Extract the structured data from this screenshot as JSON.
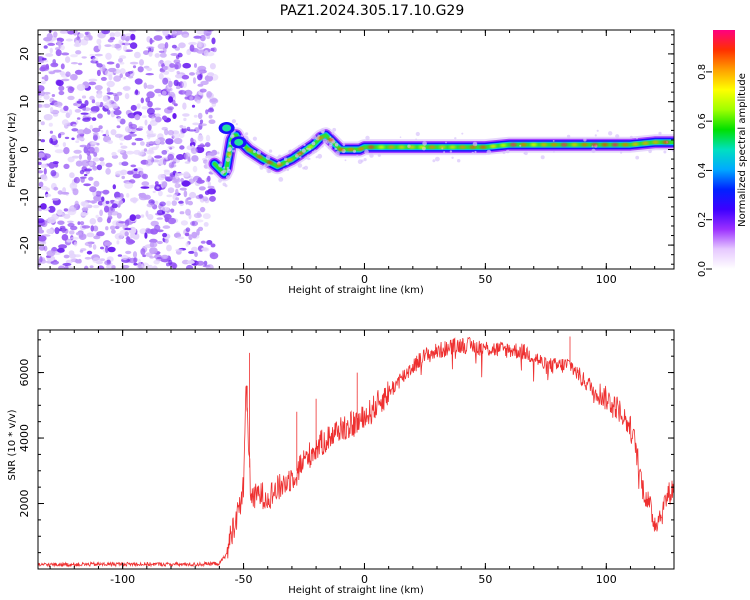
{
  "title": "PAZ1.2024.305.17.10.G29",
  "chart_data": [
    {
      "type": "heatmap",
      "xlabel": "Height of straight line (km)",
      "ylabel": "Frequency (Hz)",
      "xlim": [
        -135,
        128
      ],
      "ylim": [
        -25,
        25
      ],
      "xticks": [
        -100,
        -50,
        0,
        50,
        100
      ],
      "yticks": [
        -20,
        -10,
        0,
        10,
        20
      ],
      "noise_region_x": [
        -135,
        -62
      ],
      "ridge": {
        "x": [
          -62,
          -60,
          -58,
          -57,
          -56,
          -55,
          -54,
          -53,
          -52,
          -50,
          -48,
          -45,
          -42,
          -40,
          -38,
          -36,
          -34,
          -32,
          -30,
          -27,
          -24,
          -21,
          -18,
          -16,
          -14,
          -12,
          -10,
          -8,
          -5,
          -2,
          0,
          5,
          10,
          20,
          30,
          40,
          50,
          60,
          70,
          80,
          90,
          100,
          110,
          120,
          128
        ],
        "y": [
          -3,
          -4,
          -5,
          -4,
          -1,
          2,
          3,
          3,
          2,
          1,
          0,
          -1,
          -2,
          -2.5,
          -3,
          -3.5,
          -3,
          -2.5,
          -2,
          -1,
          0,
          1,
          2.5,
          3,
          2,
          1,
          0,
          0,
          0,
          0,
          0.5,
          0.5,
          0.5,
          0.5,
          0.5,
          0.5,
          0.5,
          1,
          1,
          1,
          1,
          1,
          1,
          1.5,
          1.5
        ]
      },
      "side_blobs": [
        {
          "x": -57,
          "y": 4.5
        },
        {
          "x": -52,
          "y": 1.5
        }
      ],
      "colorbar": {
        "label": "Normalized spectral amplitude",
        "ticks": [
          0.0,
          0.2,
          0.4,
          0.6,
          0.8
        ],
        "tick_labels": [
          "0.0",
          "0.2",
          "0.4",
          "0.6",
          "0.8"
        ],
        "range": [
          0,
          0.97
        ],
        "colors": [
          "#ffffff",
          "#e6c8ff",
          "#9b30ff",
          "#3c00ff",
          "#0022ff",
          "#00aaff",
          "#00e0c0",
          "#00e000",
          "#a0ff00",
          "#ffff00",
          "#ffa000",
          "#ff3000",
          "#ff0080"
        ]
      }
    },
    {
      "type": "line",
      "xlabel": "Height of straight line (km)",
      "ylabel": "SNR (10 * v/v)",
      "xlim": [
        -135,
        128
      ],
      "ylim": [
        0,
        7300
      ],
      "xticks": [
        -100,
        -50,
        0,
        50,
        100
      ],
      "yticks": [
        2000,
        4000,
        6000
      ],
      "line_color": "#ee3030",
      "envelope": {
        "x": [
          -135,
          -100,
          -70,
          -60,
          -57,
          -55,
          -52,
          -50,
          -49,
          -48,
          -47,
          -46,
          -44,
          -40,
          -35,
          -30,
          -25,
          -20,
          -15,
          -10,
          -5,
          0,
          5,
          10,
          15,
          20,
          25,
          30,
          35,
          40,
          45,
          50,
          55,
          60,
          65,
          70,
          75,
          80,
          85,
          90,
          95,
          100,
          105,
          110,
          112,
          115,
          118,
          120,
          123,
          125,
          128
        ],
        "y": [
          130,
          150,
          140,
          170,
          450,
          1100,
          1800,
          2500,
          5800,
          3800,
          2400,
          2100,
          2300,
          2200,
          2500,
          2800,
          3300,
          3700,
          4000,
          4300,
          4400,
          4600,
          5000,
          5400,
          5800,
          6200,
          6500,
          6650,
          6750,
          6850,
          6800,
          6750,
          6700,
          6700,
          6650,
          6500,
          6200,
          6200,
          6250,
          5800,
          5500,
          5200,
          4900,
          4300,
          3800,
          2500,
          1900,
          1400,
          1700,
          2200,
          2500
        ]
      },
      "spikes": [
        {
          "x": -47.5,
          "y": 6600
        },
        {
          "x": -48.5,
          "y": 5600
        },
        {
          "x": -28,
          "y": 4800
        },
        {
          "x": -20,
          "y": 5200
        },
        {
          "x": -3,
          "y": 6000
        },
        {
          "x": 85,
          "y": 7100
        }
      ]
    }
  ]
}
